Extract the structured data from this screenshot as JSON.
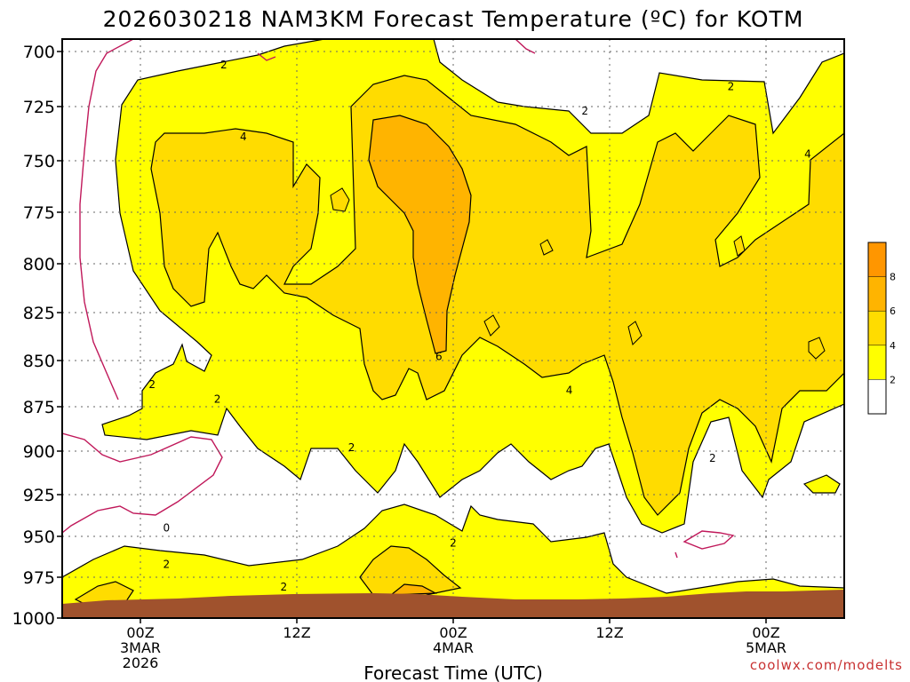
{
  "chart_data": {
    "type": "contour",
    "title": "2026030218 NAM3KM Forecast Temperature (ºC) for KOTM",
    "xlabel": "Forecast Time (UTC)",
    "ylabel": "",
    "y_axis": {
      "unit": "hPa",
      "ticks": [
        700,
        725,
        750,
        775,
        800,
        825,
        850,
        875,
        900,
        925,
        950,
        975,
        1000
      ],
      "ylim": [
        700,
        1000
      ],
      "inverted": true
    },
    "x_axis": {
      "ticks": [
        {
          "hours": 6,
          "lines": [
            "00Z",
            "3MAR",
            "2026"
          ]
        },
        {
          "hours": 18,
          "lines": [
            "12Z"
          ]
        },
        {
          "hours": 30,
          "lines": [
            "00Z",
            "4MAR"
          ]
        },
        {
          "hours": 42,
          "lines": [
            "12Z"
          ]
        },
        {
          "hours": 54,
          "lines": [
            "00Z",
            "5MAR"
          ]
        }
      ],
      "xlim": [
        0,
        60
      ]
    },
    "grid": true,
    "colorbar": {
      "placement": "right",
      "levels": [
        0,
        2,
        4,
        6,
        8,
        10
      ],
      "tick_labels": [
        "2",
        "4",
        "6",
        "8"
      ],
      "colors": [
        "#ffffff",
        "#ffff00",
        "#ffdc00",
        "#ffb400",
        "#ff9600"
      ]
    },
    "contour_labels": [
      {
        "text": "2",
        "hours": 12.4,
        "hpa": 706
      },
      {
        "text": "4",
        "hours": 13.9,
        "hpa": 739
      },
      {
        "text": "2",
        "hours": 40.1,
        "hpa": 727
      },
      {
        "text": "2",
        "hours": 51.3,
        "hpa": 716
      },
      {
        "text": "4",
        "hours": 57.2,
        "hpa": 747
      },
      {
        "text": "6",
        "hours": 28.9,
        "hpa": 848
      },
      {
        "text": "4",
        "hours": 38.9,
        "hpa": 866
      },
      {
        "text": "2",
        "hours": 6.9,
        "hpa": 863
      },
      {
        "text": "2",
        "hours": 11.9,
        "hpa": 871
      },
      {
        "text": "2",
        "hours": 22.2,
        "hpa": 898
      },
      {
        "text": "2",
        "hours": 49.9,
        "hpa": 904
      },
      {
        "text": "0",
        "hours": 8.0,
        "hpa": 945
      },
      {
        "text": "2",
        "hours": 8.0,
        "hpa": 967
      },
      {
        "text": "2",
        "hours": 17.0,
        "hpa": 981
      },
      {
        "text": "2",
        "hours": 30.0,
        "hpa": 954
      }
    ],
    "ground_color": "#a0522d",
    "credit": "coolwx.com/modelts"
  }
}
